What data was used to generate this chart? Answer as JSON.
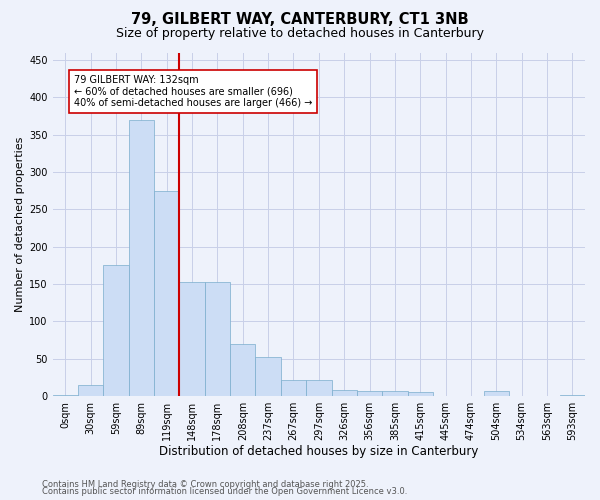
{
  "title1": "79, GILBERT WAY, CANTERBURY, CT1 3NB",
  "title2": "Size of property relative to detached houses in Canterbury",
  "xlabel": "Distribution of detached houses by size in Canterbury",
  "ylabel": "Number of detached properties",
  "bar_labels": [
    "0sqm",
    "30sqm",
    "59sqm",
    "89sqm",
    "119sqm",
    "148sqm",
    "178sqm",
    "208sqm",
    "237sqm",
    "267sqm",
    "297sqm",
    "326sqm",
    "356sqm",
    "385sqm",
    "415sqm",
    "445sqm",
    "474sqm",
    "504sqm",
    "534sqm",
    "563sqm",
    "593sqm"
  ],
  "bar_values": [
    2,
    15,
    175,
    370,
    275,
    153,
    153,
    70,
    53,
    22,
    22,
    8,
    7,
    7,
    6,
    0,
    0,
    7,
    0,
    0,
    2
  ],
  "bar_color": "#ccddf5",
  "bar_edge_color": "#7aadcc",
  "bar_width": 1.0,
  "vline_x": 4.5,
  "vline_color": "#cc0000",
  "annotation_text": "79 GILBERT WAY: 132sqm\n← 60% of detached houses are smaller (696)\n40% of semi-detached houses are larger (466) →",
  "annotation_box_color": "#ffffff",
  "annotation_box_edge": "#cc0000",
  "ylim": [
    0,
    460
  ],
  "yticks": [
    0,
    50,
    100,
    150,
    200,
    250,
    300,
    350,
    400,
    450
  ],
  "bg_color": "#eef2fb",
  "grid_color": "#c8cfe8",
  "footer1": "Contains HM Land Registry data © Crown copyright and database right 2025.",
  "footer2": "Contains public sector information licensed under the Open Government Licence v3.0.",
  "title1_fontsize": 10.5,
  "title2_fontsize": 9,
  "xlabel_fontsize": 8.5,
  "ylabel_fontsize": 8,
  "tick_fontsize": 7,
  "annotation_fontsize": 7,
  "footer_fontsize": 6
}
